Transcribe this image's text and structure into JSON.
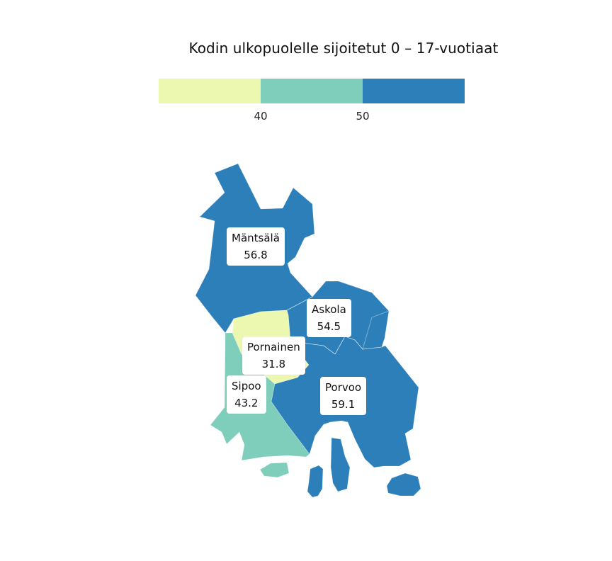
{
  "title": "Kodin ulkopuolelle sijoitetut 0 – 17-vuotiaat",
  "legend": {
    "colors": [
      "#ecf8b0",
      "#7fcdbb",
      "#2c7fb8"
    ],
    "ticks": [
      "40",
      "50"
    ]
  },
  "regions": [
    {
      "name": "Mäntsälä",
      "value": "56.8",
      "color": "#2c7fb8"
    },
    {
      "name": "Askola",
      "value": "54.5",
      "color": "#2c7fb8"
    },
    {
      "name": "Pornainen",
      "value": "31.8",
      "color": "#ecf8b0"
    },
    {
      "name": "Sipoo",
      "value": "43.2",
      "color": "#7fcdbb"
    },
    {
      "name": "Porvoo",
      "value": "59.1",
      "color": "#2c7fb8"
    }
  ]
}
